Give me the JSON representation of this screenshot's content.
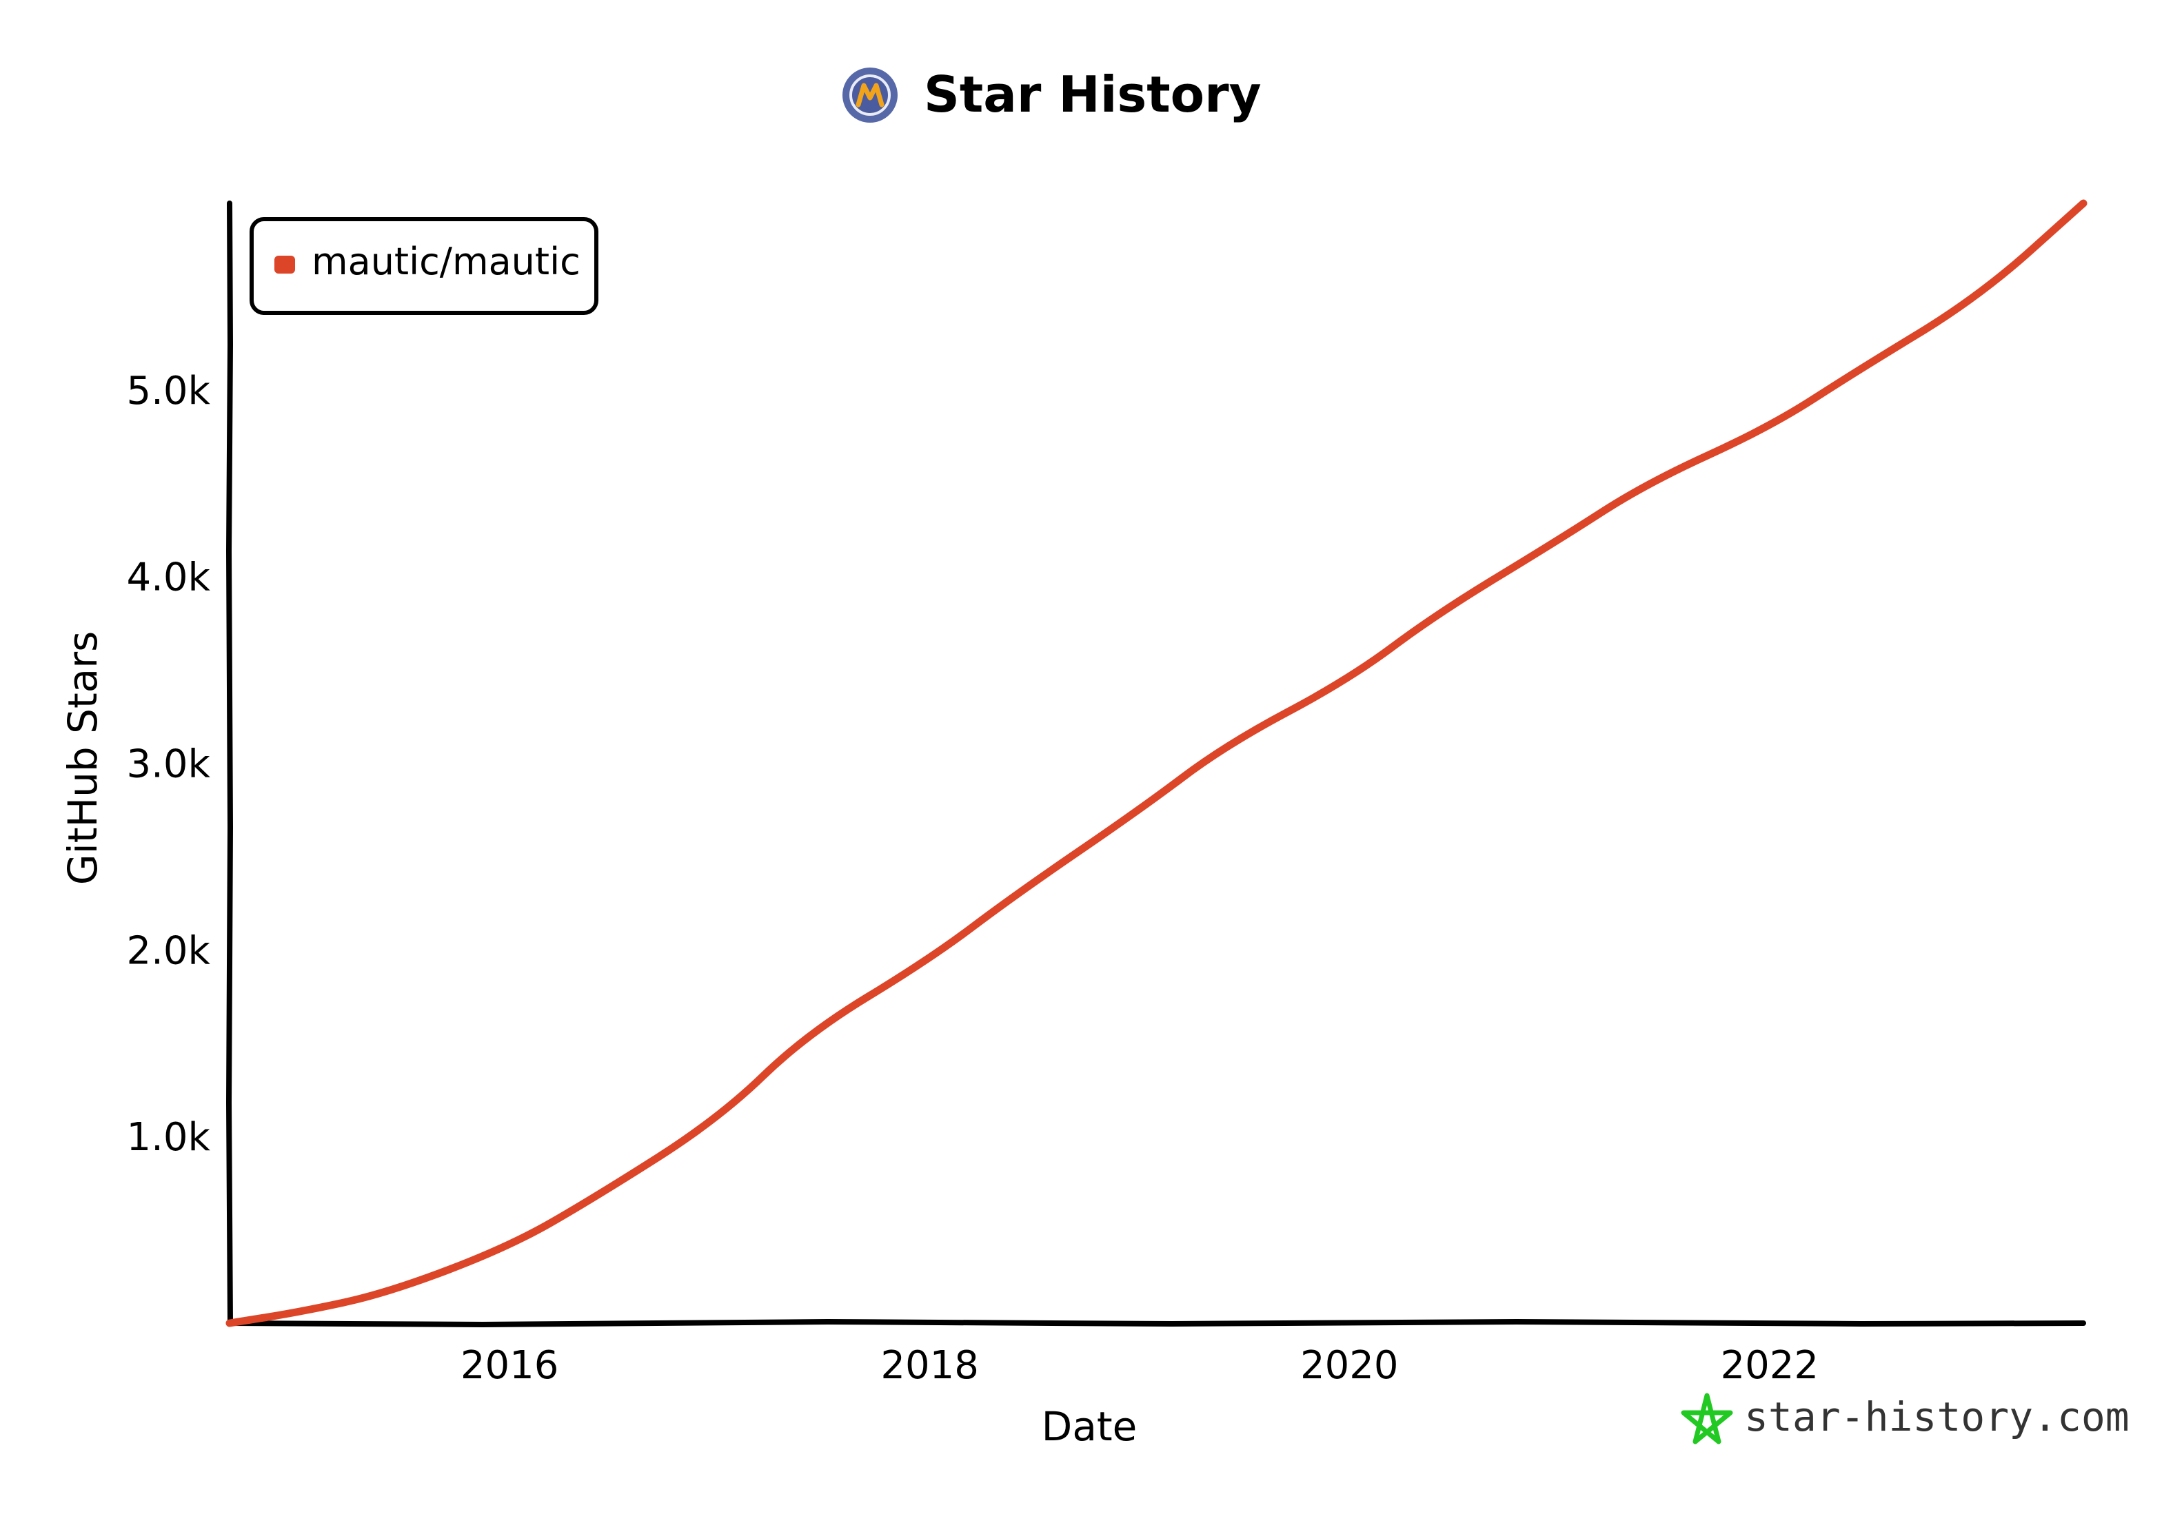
{
  "chart_data": {
    "type": "line",
    "title": "Star History",
    "xlabel": "Date",
    "ylabel": "GitHub Stars",
    "x_ticks": [
      "2016",
      "2018",
      "2020",
      "2022"
    ],
    "y_ticks": [
      "1.0k",
      "2.0k",
      "3.0k",
      "4.0k",
      "5.0k"
    ],
    "xlim": [
      "2014-09-01",
      "2023-07-01"
    ],
    "ylim": [
      0,
      6000
    ],
    "grid": false,
    "legend_position": "top-left",
    "series": [
      {
        "name": "mautic/mautic",
        "color": "#dd4528",
        "points": [
          [
            "2014-09-01",
            0
          ],
          [
            "2015-01-01",
            60
          ],
          [
            "2015-06-01",
            160
          ],
          [
            "2016-01-01",
            410
          ],
          [
            "2016-06-01",
            680
          ],
          [
            "2017-01-01",
            1100
          ],
          [
            "2017-06-01",
            1550
          ],
          [
            "2018-01-01",
            1950
          ],
          [
            "2018-06-01",
            2300
          ],
          [
            "2019-01-01",
            2750
          ],
          [
            "2019-06-01",
            3100
          ],
          [
            "2020-01-01",
            3450
          ],
          [
            "2020-06-01",
            3800
          ],
          [
            "2021-01-01",
            4200
          ],
          [
            "2021-06-01",
            4500
          ],
          [
            "2022-01-01",
            4800
          ],
          [
            "2022-06-01",
            5100
          ],
          [
            "2023-01-01",
            5500
          ],
          [
            "2023-07-01",
            6000
          ]
        ]
      }
    ]
  },
  "colors": {
    "line": "#dd4528",
    "axis": "#000000",
    "watermark": "#22c922",
    "logo_ring": "#5668a8",
    "logo_fill": "#f0a31b"
  },
  "watermark": {
    "text": "star-history.com",
    "icon": "star-icon"
  },
  "logo": {
    "icon": "mautic-logo-icon"
  }
}
